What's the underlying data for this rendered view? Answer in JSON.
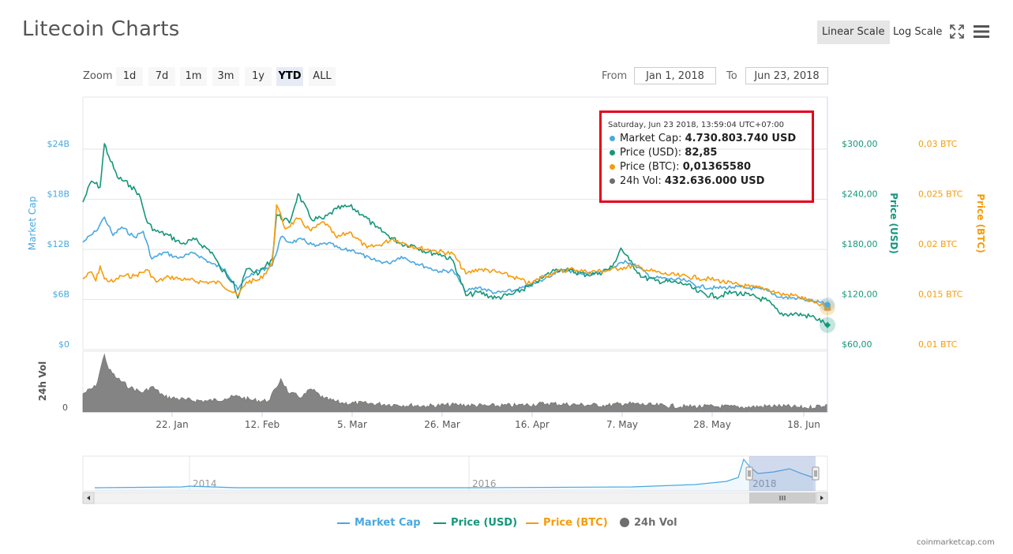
{
  "header": {
    "title": "Litecoin Charts",
    "linear_scale": "Linear Scale",
    "log_scale": "Log Scale",
    "fullscreen_icon": "fullscreen-icon",
    "menu_icon": "hamburger-menu-icon"
  },
  "zoom": {
    "label": "Zoom",
    "buttons": [
      "1d",
      "7d",
      "1m",
      "3m",
      "1y",
      "YTD",
      "ALL"
    ],
    "selected": "YTD"
  },
  "range": {
    "from_label": "From",
    "from_value": "Jan 1, 2018",
    "to_label": "To",
    "to_value": "Jun 23, 2018"
  },
  "tooltip": {
    "date": "Saturday, Jun 23 2018, 13:59:04 UTC+07:00",
    "rows": [
      {
        "label": "Market Cap:",
        "value": "4.730.803.740 USD",
        "color": "#4aa8e0"
      },
      {
        "label": "Price (USD):",
        "value": "82,85",
        "color": "#16967a"
      },
      {
        "label": "Price (BTC):",
        "value": "0,01365580",
        "color": "#f59c0c"
      },
      {
        "label": "24h Vol:",
        "value": "432.636.000 USD",
        "color": "#6e6e6e"
      }
    ]
  },
  "legend": {
    "market_cap": "Market Cap",
    "price_usd": "Price (USD)",
    "price_btc": "Price (BTC)",
    "vol": "24h Vol"
  },
  "credits": "coinmarketcap.com",
  "colors": {
    "market_cap": "#4aa8e0",
    "price_usd": "#16967a",
    "price_btc": "#f59c0c",
    "vol": "#6e6e6e",
    "highlight_box": "#e3001b"
  },
  "chart_data": {
    "type": "line",
    "x_type": "date",
    "x_range": [
      "2018-01-01",
      "2018-06-23"
    ],
    "x_ticks": [
      "22. Jan",
      "12. Feb",
      "5. Mar",
      "26. Mar",
      "16. Apr",
      "7. May",
      "28. May",
      "18. Jun"
    ],
    "axes": {
      "market_cap": {
        "label": "Market Cap",
        "ticks": [
          "$0",
          "$6B",
          "$12B",
          "$18B",
          "$24B"
        ],
        "range": [
          0,
          24000000000
        ]
      },
      "price_usd": {
        "label": "Price (USD)",
        "ticks": [
          "$60,00",
          "$120,00",
          "$180,00",
          "$240,00",
          "$300,00"
        ],
        "range": [
          60,
          300
        ]
      },
      "price_btc": {
        "label": "Price (BTC)",
        "ticks": [
          "0,01 BTC",
          "0,015 BTC",
          "0,02 BTC",
          "0,025 BTC",
          "0,03 BTC"
        ],
        "range": [
          0.01,
          0.03
        ]
      },
      "vol": {
        "label": "24h Vol",
        "ticks": [
          "0"
        ]
      }
    },
    "series": [
      {
        "name": "Market Cap",
        "axis": "market_cap",
        "points": [
          [
            "2018-01-01",
            12200000000
          ],
          [
            "2018-01-04",
            13500000000
          ],
          [
            "2018-01-06",
            15200000000
          ],
          [
            "2018-01-08",
            13000000000
          ],
          [
            "2018-01-10",
            14000000000
          ],
          [
            "2018-01-13",
            12800000000
          ],
          [
            "2018-01-15",
            13500000000
          ],
          [
            "2018-01-17",
            10200000000
          ],
          [
            "2018-01-20",
            11000000000
          ],
          [
            "2018-01-23",
            10300000000
          ],
          [
            "2018-01-27",
            10900000000
          ],
          [
            "2018-01-31",
            9600000000
          ],
          [
            "2018-02-03",
            9000000000
          ],
          [
            "2018-02-06",
            6500000000
          ],
          [
            "2018-02-08",
            8000000000
          ],
          [
            "2018-02-10",
            8600000000
          ],
          [
            "2018-02-14",
            9400000000
          ],
          [
            "2018-02-16",
            12800000000
          ],
          [
            "2018-02-18",
            12200000000
          ],
          [
            "2018-02-21",
            12500000000
          ],
          [
            "2018-02-24",
            11700000000
          ],
          [
            "2018-02-27",
            12100000000
          ],
          [
            "2018-03-02",
            11300000000
          ],
          [
            "2018-03-05",
            11200000000
          ],
          [
            "2018-03-09",
            10100000000
          ],
          [
            "2018-03-13",
            9700000000
          ],
          [
            "2018-03-16",
            10500000000
          ],
          [
            "2018-03-19",
            9800000000
          ],
          [
            "2018-03-22",
            9200000000
          ],
          [
            "2018-03-25",
            8700000000
          ],
          [
            "2018-03-28",
            8800000000
          ],
          [
            "2018-03-31",
            6300000000
          ],
          [
            "2018-04-03",
            6800000000
          ],
          [
            "2018-04-07",
            6100000000
          ],
          [
            "2018-04-11",
            6400000000
          ],
          [
            "2018-04-15",
            7000000000
          ],
          [
            "2018-04-18",
            7700000000
          ],
          [
            "2018-04-21",
            8700000000
          ],
          [
            "2018-04-24",
            8800000000
          ],
          [
            "2018-04-28",
            8400000000
          ],
          [
            "2018-05-01",
            8600000000
          ],
          [
            "2018-05-05",
            9300000000
          ],
          [
            "2018-05-07",
            10000000000
          ],
          [
            "2018-05-10",
            9200000000
          ],
          [
            "2018-05-13",
            8000000000
          ],
          [
            "2018-05-17",
            7800000000
          ],
          [
            "2018-05-21",
            7600000000
          ],
          [
            "2018-05-24",
            6900000000
          ],
          [
            "2018-05-28",
            6700000000
          ],
          [
            "2018-06-01",
            6800000000
          ],
          [
            "2018-06-05",
            6700000000
          ],
          [
            "2018-06-09",
            6400000000
          ],
          [
            "2018-06-12",
            5600000000
          ],
          [
            "2018-06-16",
            5500000000
          ],
          [
            "2018-06-20",
            5100000000
          ],
          [
            "2018-06-23",
            4730803740
          ]
        ]
      },
      {
        "name": "Price (USD)",
        "axis": "price_usd",
        "points": [
          [
            "2018-01-01",
            230
          ],
          [
            "2018-01-03",
            255
          ],
          [
            "2018-01-05",
            248
          ],
          [
            "2018-01-06",
            300
          ],
          [
            "2018-01-07",
            285
          ],
          [
            "2018-01-09",
            260
          ],
          [
            "2018-01-12",
            250
          ],
          [
            "2018-01-14",
            240
          ],
          [
            "2018-01-16",
            205
          ],
          [
            "2018-01-18",
            195
          ],
          [
            "2018-01-21",
            190
          ],
          [
            "2018-01-24",
            180
          ],
          [
            "2018-01-27",
            185
          ],
          [
            "2018-01-31",
            170
          ],
          [
            "2018-02-02",
            150
          ],
          [
            "2018-02-05",
            135
          ],
          [
            "2018-02-06",
            115
          ],
          [
            "2018-02-08",
            150
          ],
          [
            "2018-02-11",
            145
          ],
          [
            "2018-02-14",
            162
          ],
          [
            "2018-02-15",
            215
          ],
          [
            "2018-02-18",
            205
          ],
          [
            "2018-02-20",
            240
          ],
          [
            "2018-02-23",
            210
          ],
          [
            "2018-02-26",
            210
          ],
          [
            "2018-03-01",
            222
          ],
          [
            "2018-03-04",
            225
          ],
          [
            "2018-03-07",
            215
          ],
          [
            "2018-03-10",
            200
          ],
          [
            "2018-03-13",
            190
          ],
          [
            "2018-03-16",
            180
          ],
          [
            "2018-03-19",
            178
          ],
          [
            "2018-03-22",
            170
          ],
          [
            "2018-03-25",
            168
          ],
          [
            "2018-03-28",
            160
          ],
          [
            "2018-03-31",
            118
          ],
          [
            "2018-04-03",
            122
          ],
          [
            "2018-04-07",
            115
          ],
          [
            "2018-04-11",
            120
          ],
          [
            "2018-04-15",
            130
          ],
          [
            "2018-04-18",
            140
          ],
          [
            "2018-04-21",
            150
          ],
          [
            "2018-04-24",
            148
          ],
          [
            "2018-04-28",
            143
          ],
          [
            "2018-05-01",
            145
          ],
          [
            "2018-05-04",
            152
          ],
          [
            "2018-05-06",
            175
          ],
          [
            "2018-05-08",
            160
          ],
          [
            "2018-05-11",
            140
          ],
          [
            "2018-05-14",
            136
          ],
          [
            "2018-05-18",
            134
          ],
          [
            "2018-05-21",
            132
          ],
          [
            "2018-05-24",
            122
          ],
          [
            "2018-05-28",
            117
          ],
          [
            "2018-06-01",
            122
          ],
          [
            "2018-06-05",
            118
          ],
          [
            "2018-06-09",
            112
          ],
          [
            "2018-06-12",
            96
          ],
          [
            "2018-06-16",
            96
          ],
          [
            "2018-06-20",
            92
          ],
          [
            "2018-06-23",
            82.85
          ]
        ]
      },
      {
        "name": "Price (BTC)",
        "axis": "price_btc",
        "points": [
          [
            "2018-01-01",
            0.0165
          ],
          [
            "2018-01-03",
            0.0172
          ],
          [
            "2018-01-04",
            0.0163
          ],
          [
            "2018-01-05",
            0.0178
          ],
          [
            "2018-01-06",
            0.0165
          ],
          [
            "2018-01-08",
            0.0162
          ],
          [
            "2018-01-10",
            0.0168
          ],
          [
            "2018-01-13",
            0.0168
          ],
          [
            "2018-01-16",
            0.0174
          ],
          [
            "2018-01-18",
            0.0162
          ],
          [
            "2018-01-21",
            0.0167
          ],
          [
            "2018-01-25",
            0.0164
          ],
          [
            "2018-01-29",
            0.0162
          ],
          [
            "2018-02-02",
            0.0161
          ],
          [
            "2018-02-06",
            0.0148
          ],
          [
            "2018-02-08",
            0.0162
          ],
          [
            "2018-02-11",
            0.0164
          ],
          [
            "2018-02-14",
            0.018
          ],
          [
            "2018-02-15",
            0.0239
          ],
          [
            "2018-02-17",
            0.0215
          ],
          [
            "2018-02-20",
            0.0225
          ],
          [
            "2018-02-23",
            0.0213
          ],
          [
            "2018-02-26",
            0.0222
          ],
          [
            "2018-03-01",
            0.0206
          ],
          [
            "2018-03-04",
            0.0212
          ],
          [
            "2018-03-08",
            0.0196
          ],
          [
            "2018-03-11",
            0.0199
          ],
          [
            "2018-03-14",
            0.0205
          ],
          [
            "2018-03-17",
            0.02
          ],
          [
            "2018-03-20",
            0.0196
          ],
          [
            "2018-03-24",
            0.0193
          ],
          [
            "2018-03-28",
            0.019
          ],
          [
            "2018-03-31",
            0.017
          ],
          [
            "2018-04-03",
            0.0175
          ],
          [
            "2018-04-07",
            0.0172
          ],
          [
            "2018-04-11",
            0.0167
          ],
          [
            "2018-04-15",
            0.016
          ],
          [
            "2018-04-18",
            0.0168
          ],
          [
            "2018-04-21",
            0.0172
          ],
          [
            "2018-04-25",
            0.0175
          ],
          [
            "2018-04-28",
            0.0172
          ],
          [
            "2018-05-02",
            0.0173
          ],
          [
            "2018-05-06",
            0.0176
          ],
          [
            "2018-05-09",
            0.0178
          ],
          [
            "2018-05-12",
            0.0174
          ],
          [
            "2018-05-16",
            0.017
          ],
          [
            "2018-05-20",
            0.0168
          ],
          [
            "2018-05-24",
            0.0166
          ],
          [
            "2018-05-28",
            0.0164
          ],
          [
            "2018-06-01",
            0.016
          ],
          [
            "2018-06-05",
            0.0157
          ],
          [
            "2018-06-09",
            0.0155
          ],
          [
            "2018-06-12",
            0.015
          ],
          [
            "2018-06-16",
            0.0148
          ],
          [
            "2018-06-20",
            0.0141
          ],
          [
            "2018-06-23",
            0.0136558
          ]
        ]
      },
      {
        "name": "24h Vol",
        "axis": "vol",
        "points": [
          [
            "2018-01-01",
            0.3
          ],
          [
            "2018-01-04",
            0.42
          ],
          [
            "2018-01-06",
            0.95
          ],
          [
            "2018-01-07",
            0.7
          ],
          [
            "2018-01-09",
            0.55
          ],
          [
            "2018-01-12",
            0.4
          ],
          [
            "2018-01-15",
            0.32
          ],
          [
            "2018-01-17",
            0.42
          ],
          [
            "2018-01-20",
            0.25
          ],
          [
            "2018-01-25",
            0.2
          ],
          [
            "2018-01-30",
            0.18
          ],
          [
            "2018-02-03",
            0.22
          ],
          [
            "2018-02-06",
            0.26
          ],
          [
            "2018-02-09",
            0.2
          ],
          [
            "2018-02-13",
            0.18
          ],
          [
            "2018-02-15",
            0.4
          ],
          [
            "2018-02-16",
            0.55
          ],
          [
            "2018-02-18",
            0.3
          ],
          [
            "2018-02-21",
            0.25
          ],
          [
            "2018-02-23",
            0.38
          ],
          [
            "2018-02-26",
            0.22
          ],
          [
            "2018-03-02",
            0.15
          ],
          [
            "2018-03-08",
            0.14
          ],
          [
            "2018-03-15",
            0.12
          ],
          [
            "2018-03-22",
            0.1
          ],
          [
            "2018-03-29",
            0.12
          ],
          [
            "2018-04-05",
            0.1
          ],
          [
            "2018-04-12",
            0.11
          ],
          [
            "2018-04-19",
            0.14
          ],
          [
            "2018-04-26",
            0.12
          ],
          [
            "2018-05-03",
            0.11
          ],
          [
            "2018-05-07",
            0.14
          ],
          [
            "2018-05-14",
            0.11
          ],
          [
            "2018-05-21",
            0.09
          ],
          [
            "2018-05-28",
            0.09
          ],
          [
            "2018-06-04",
            0.08
          ],
          [
            "2018-06-11",
            0.1
          ],
          [
            "2018-06-18",
            0.07
          ],
          [
            "2018-06-23",
            0.12
          ]
        ]
      }
    ],
    "navigator": {
      "x_labels": [
        "2014",
        "2016",
        "2018"
      ],
      "selected_range": [
        "2018-01-01",
        "2018-06-23"
      ]
    }
  }
}
